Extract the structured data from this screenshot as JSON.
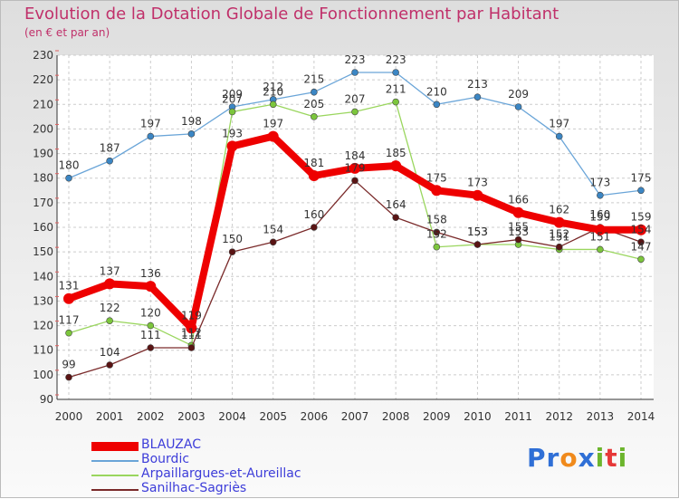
{
  "chart_data": {
    "type": "line",
    "title": "Evolution de la Dotation Globale de Fonctionnement par Habitant",
    "subtitle": "(en € et par an)",
    "x": [
      "2000",
      "2001",
      "2002",
      "2003",
      "2004",
      "2005",
      "2006",
      "2007",
      "2008",
      "2009",
      "2010",
      "2011",
      "2012",
      "2013",
      "2014"
    ],
    "ylim": [
      90,
      230
    ],
    "yticks": [
      90,
      100,
      110,
      120,
      130,
      140,
      150,
      160,
      170,
      180,
      190,
      200,
      210,
      220,
      230
    ],
    "grid": true,
    "series": [
      {
        "name": "BLAUZAC",
        "color": "#ee0000",
        "point_color": "#ee0000",
        "label_color": "#333333",
        "emphasis": true,
        "values": [
          131,
          137,
          136,
          119,
          193,
          197,
          181,
          184,
          185,
          175,
          173,
          166,
          162,
          159,
          159
        ]
      },
      {
        "name": "Bourdic",
        "color": "#6aa5d8",
        "point_color": "#3b86c4",
        "label_color": "#333333",
        "emphasis": false,
        "values": [
          180,
          187,
          197,
          198,
          209,
          212,
          215,
          223,
          223,
          210,
          213,
          209,
          197,
          173,
          175
        ]
      },
      {
        "name": "Arpaillargues-et-Aureillac",
        "color": "#9ad65e",
        "point_color": "#7cc63c",
        "label_color": "#333333",
        "emphasis": false,
        "values": [
          117,
          122,
          120,
          112,
          207,
          210,
          205,
          207,
          211,
          152,
          153,
          153,
          151,
          151,
          147
        ]
      },
      {
        "name": "Sanilhac-Sagriès",
        "color": "#7a2a2a",
        "point_color": "#5a1414",
        "label_color": "#333333",
        "emphasis": false,
        "values": [
          99,
          104,
          111,
          111,
          150,
          154,
          160,
          179,
          164,
          158,
          153,
          155,
          152,
          160,
          154
        ]
      }
    ]
  },
  "logo": {
    "text": "Proxiti",
    "colors": [
      "#2f6fd6",
      "#2f6fd6",
      "#f08a1c",
      "#2f6fd6",
      "#6cb52d",
      "#e63838",
      "#6cb52d"
    ]
  }
}
